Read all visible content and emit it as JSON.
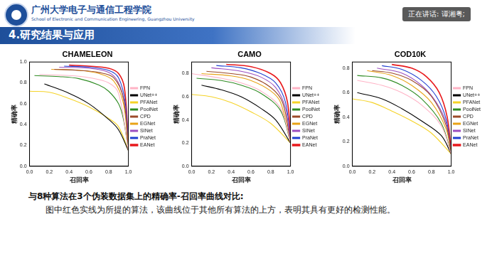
{
  "header": {
    "school_cn": "广州大学电子与通信工程学院",
    "school_en": "School of Electronic and Communication Engineering, Guangzhou University",
    "section": "4.研究结果与应用"
  },
  "speaker": "正在讲话: 谭湘粤;",
  "caption": {
    "heading": "与8种算法在3个伪装数据集上的精确率-召回率曲线对比:",
    "text": "图中红色实线为所提的算法，该曲线位于其他所有算法的上方，表明其具有更好的检测性能。"
  },
  "chart_data": [
    {
      "type": "line",
      "title": "CHAMELEON",
      "x_label": "召回率",
      "y_label": "精确率",
      "xlim": [
        0,
        1
      ],
      "ylim": [
        0,
        1
      ],
      "xticks": [
        {
          "value": 0,
          "label": "0.0"
        },
        0.2,
        0.4,
        0.6,
        0.8,
        {
          "value": 1,
          "label": "1.0"
        }
      ],
      "yticks": [
        {
          "value": 0,
          "label": "0.0"
        },
        0.2,
        0.4,
        0.6,
        0.8,
        {
          "value": 1,
          "label": "1.0"
        }
      ],
      "grid": false,
      "legend": "right",
      "series": [
        {
          "name": "FPN",
          "color": "#ffb3c6",
          "x": [
            0.1,
            0.4,
            0.6,
            0.8,
            0.9,
            1.0
          ],
          "values": [
            0.88,
            0.87,
            0.85,
            0.8,
            0.7,
            0.15
          ]
        },
        {
          "name": "UNet++",
          "color": "#000000",
          "x": [
            0.15,
            0.4,
            0.6,
            0.8,
            0.9,
            1.0
          ],
          "values": [
            0.79,
            0.7,
            0.6,
            0.45,
            0.35,
            0.15
          ]
        },
        {
          "name": "PFANet",
          "color": "#f5d327",
          "x": [
            0.0,
            0.2,
            0.4,
            0.6,
            0.8,
            0.9,
            1.0
          ],
          "values": [
            0.72,
            0.71,
            0.65,
            0.57,
            0.46,
            0.38,
            0.15
          ]
        },
        {
          "name": "PoolNet",
          "color": "#2e8b22",
          "x": [
            0.05,
            0.3,
            0.5,
            0.7,
            0.8,
            0.9,
            0.95,
            1.0
          ],
          "values": [
            0.87,
            0.86,
            0.84,
            0.78,
            0.72,
            0.6,
            0.45,
            0.15
          ]
        },
        {
          "name": "CPD",
          "color": "#9c4a2a",
          "x": [
            0.25,
            0.5,
            0.7,
            0.85,
            0.95,
            1.0
          ],
          "values": [
            0.93,
            0.92,
            0.9,
            0.85,
            0.65,
            0.15
          ]
        },
        {
          "name": "EGNet",
          "color": "#e8a317",
          "x": [
            0.22,
            0.5,
            0.7,
            0.85,
            0.95,
            1.0
          ],
          "values": [
            0.93,
            0.92,
            0.89,
            0.82,
            0.6,
            0.15
          ]
        },
        {
          "name": "SINet",
          "color": "#9b4fc0",
          "x": [
            0.3,
            0.6,
            0.8,
            0.9,
            0.97,
            1.0
          ],
          "values": [
            0.95,
            0.94,
            0.9,
            0.8,
            0.55,
            0.15
          ]
        },
        {
          "name": "PraNet",
          "color": "#1f3fd0",
          "x": [
            0.35,
            0.6,
            0.8,
            0.9,
            0.97,
            1.0
          ],
          "values": [
            0.96,
            0.95,
            0.92,
            0.85,
            0.6,
            0.15
          ]
        },
        {
          "name": "EANet",
          "color": "#e8191c",
          "x": [
            0.4,
            0.6,
            0.8,
            0.9,
            0.96,
            1.0
          ],
          "values": [
            0.97,
            0.96,
            0.94,
            0.89,
            0.75,
            0.2
          ]
        }
      ]
    },
    {
      "type": "line",
      "title": "CAMO",
      "x_label": "召回率",
      "y_label": "精确率",
      "xlim": [
        0,
        1
      ],
      "ylim": [
        0,
        0.9
      ],
      "xticks": [
        {
          "value": 0,
          "label": "0.0"
        },
        0.2,
        0.4,
        0.6,
        0.8,
        {
          "value": 1,
          "label": "1.0"
        }
      ],
      "yticks": [
        {
          "value": 0,
          "label": "0.0"
        },
        0.2,
        0.4,
        0.6,
        0.8
      ],
      "grid": false,
      "legend": "right",
      "series": [
        {
          "name": "FPN",
          "color": "#ffb3c6",
          "x": [
            0.0,
            0.3,
            0.5,
            0.7,
            0.9,
            1.0
          ],
          "values": [
            0.8,
            0.76,
            0.72,
            0.65,
            0.5,
            0.2
          ]
        },
        {
          "name": "UNet++",
          "color": "#000000",
          "x": [
            0.1,
            0.3,
            0.5,
            0.7,
            0.85,
            1.0
          ],
          "values": [
            0.7,
            0.66,
            0.6,
            0.5,
            0.4,
            0.2
          ]
        },
        {
          "name": "PFANet",
          "color": "#f5d327",
          "x": [
            0.0,
            0.2,
            0.4,
            0.6,
            0.8,
            1.0
          ],
          "values": [
            0.62,
            0.6,
            0.55,
            0.47,
            0.37,
            0.2
          ]
        },
        {
          "name": "PoolNet",
          "color": "#2e8b22",
          "x": [
            0.05,
            0.3,
            0.5,
            0.7,
            0.9,
            1.0
          ],
          "values": [
            0.76,
            0.74,
            0.7,
            0.63,
            0.48,
            0.2
          ]
        },
        {
          "name": "CPD",
          "color": "#9c4a2a",
          "x": [
            0.15,
            0.4,
            0.6,
            0.8,
            0.92,
            1.0
          ],
          "values": [
            0.82,
            0.8,
            0.77,
            0.68,
            0.55,
            0.2
          ]
        },
        {
          "name": "EGNet",
          "color": "#e8a317",
          "x": [
            0.1,
            0.4,
            0.6,
            0.8,
            0.9,
            1.0
          ],
          "values": [
            0.8,
            0.78,
            0.74,
            0.65,
            0.55,
            0.2
          ]
        },
        {
          "name": "SINet",
          "color": "#9b4fc0",
          "x": [
            0.2,
            0.5,
            0.7,
            0.85,
            0.95,
            1.0
          ],
          "values": [
            0.85,
            0.82,
            0.77,
            0.68,
            0.5,
            0.2
          ]
        },
        {
          "name": "PraNet",
          "color": "#1f3fd0",
          "x": [
            0.25,
            0.5,
            0.7,
            0.85,
            0.95,
            1.0
          ],
          "values": [
            0.87,
            0.85,
            0.8,
            0.72,
            0.55,
            0.2
          ]
        },
        {
          "name": "EANet",
          "color": "#e8191c",
          "x": [
            0.35,
            0.6,
            0.8,
            0.9,
            0.97,
            1.0
          ],
          "values": [
            0.88,
            0.86,
            0.8,
            0.72,
            0.55,
            0.25
          ]
        }
      ]
    },
    {
      "type": "line",
      "title": "COD10K",
      "x_label": "召回率",
      "y_label": "精确率",
      "xlim": [
        0,
        1
      ],
      "ylim": [
        0,
        0.85
      ],
      "xticks": [
        {
          "value": 0,
          "label": "0.0"
        },
        0.2,
        0.4,
        0.6,
        0.8,
        {
          "value": 1,
          "label": "1.0"
        }
      ],
      "yticks": [
        {
          "value": 0,
          "label": "0.0"
        },
        0.2,
        0.4,
        0.6,
        0.8
      ],
      "grid": false,
      "legend": "right",
      "series": [
        {
          "name": "FPN",
          "color": "#ffb3c6",
          "x": [
            0.05,
            0.3,
            0.5,
            0.7,
            0.9,
            1.0
          ],
          "values": [
            0.7,
            0.66,
            0.6,
            0.5,
            0.33,
            0.1
          ]
        },
        {
          "name": "UNet++",
          "color": "#000000",
          "x": [
            0.05,
            0.3,
            0.5,
            0.7,
            0.9,
            1.0
          ],
          "values": [
            0.6,
            0.55,
            0.47,
            0.37,
            0.25,
            0.1
          ]
        },
        {
          "name": "PFANet",
          "color": "#f5d327",
          "x": [
            0.0,
            0.2,
            0.4,
            0.6,
            0.8,
            1.0
          ],
          "values": [
            0.55,
            0.52,
            0.45,
            0.37,
            0.27,
            0.1
          ]
        },
        {
          "name": "PoolNet",
          "color": "#2e8b22",
          "x": [
            0.05,
            0.3,
            0.5,
            0.7,
            0.9,
            1.0
          ],
          "values": [
            0.74,
            0.72,
            0.66,
            0.55,
            0.35,
            0.1
          ]
        },
        {
          "name": "CPD",
          "color": "#9c4a2a",
          "x": [
            0.2,
            0.4,
            0.6,
            0.8,
            0.95,
            1.0
          ],
          "values": [
            0.78,
            0.76,
            0.7,
            0.57,
            0.33,
            0.1
          ]
        },
        {
          "name": "EGNet",
          "color": "#e8a317",
          "x": [
            0.15,
            0.4,
            0.6,
            0.8,
            0.95,
            1.0
          ],
          "values": [
            0.78,
            0.74,
            0.66,
            0.52,
            0.3,
            0.1
          ]
        },
        {
          "name": "SINet",
          "color": "#9b4fc0",
          "x": [
            0.25,
            0.5,
            0.7,
            0.85,
            0.95,
            1.0
          ],
          "values": [
            0.8,
            0.76,
            0.66,
            0.52,
            0.35,
            0.1
          ]
        },
        {
          "name": "PraNet",
          "color": "#1f3fd0",
          "x": [
            0.3,
            0.5,
            0.7,
            0.85,
            0.95,
            1.0
          ],
          "values": [
            0.82,
            0.79,
            0.7,
            0.57,
            0.38,
            0.1
          ]
        },
        {
          "name": "EANet",
          "color": "#e8191c",
          "x": [
            0.4,
            0.6,
            0.75,
            0.88,
            0.96,
            1.0
          ],
          "values": [
            0.83,
            0.8,
            0.73,
            0.6,
            0.4,
            0.12
          ]
        }
      ]
    }
  ]
}
